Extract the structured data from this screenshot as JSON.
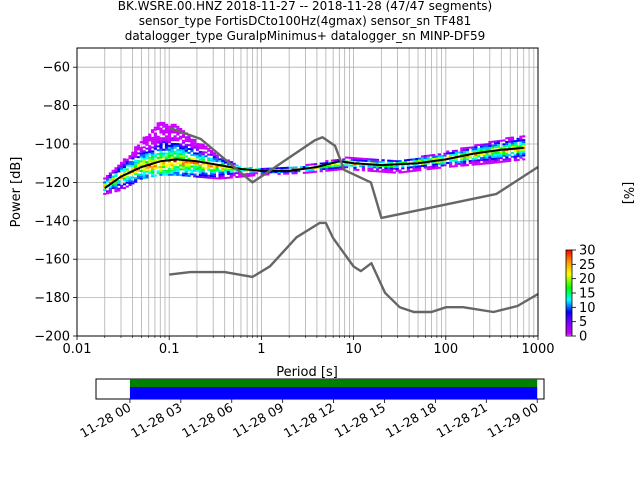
{
  "title": {
    "line1": "BK.WSRE.00.HNZ   2018-11-27 -- 2018-11-28  (47/47 segments)",
    "line2": "sensor_type FortisDCto100Hz(4gmax) sensor_sn TF481",
    "line3": "datalogger_type GuralpMinimus+ datalogger_sn MINP-DF59"
  },
  "chart_data": [
    {
      "type": "heatmap",
      "subtype": "probabilistic power spectral density",
      "xlabel": "Period [s]",
      "ylabel": "Power [dB]",
      "xscale": "log",
      "xlim": [
        0.01,
        1000
      ],
      "ylim": [
        -200,
        -50
      ],
      "x_ticks": [
        0.01,
        0.1,
        1,
        10,
        100,
        1000
      ],
      "x_tick_labels": [
        "0.01",
        "0.1",
        "1",
        "10",
        "100",
        "1000"
      ],
      "y_ticks": [
        -60,
        -80,
        -100,
        -120,
        -140,
        -160,
        -180,
        -200
      ],
      "y_tick_labels": [
        "−60",
        "−80",
        "−100",
        "−120",
        "−140",
        "−160",
        "−180",
        "−200"
      ],
      "grid": true,
      "colormap": "pqlx",
      "colorbar": {
        "label": "[%]",
        "range": [
          0,
          30
        ],
        "ticks": [
          0,
          5,
          10,
          15,
          20,
          25,
          30
        ],
        "tick_labels": [
          "0",
          "5",
          "10",
          "15",
          "20",
          "25",
          "30"
        ]
      },
      "series": [
        {
          "role": "mean",
          "color": "#000000",
          "x": [
            0.02,
            0.03,
            0.05,
            0.08,
            0.12,
            0.2,
            0.35,
            0.6,
            1,
            2,
            4,
            7,
            10,
            20,
            50,
            100,
            200,
            400,
            700
          ],
          "y": [
            -123,
            -117,
            -112,
            -109,
            -108,
            -109,
            -111,
            -113,
            -114,
            -114,
            -112,
            -109,
            -110,
            -111,
            -110,
            -108,
            -105,
            -103,
            -102
          ]
        },
        {
          "role": "noise-model-high",
          "color": "#666666",
          "x": [
            0.1,
            0.22,
            0.8,
            3.8,
            4.6,
            6.3,
            7.9,
            15.4,
            20,
            354.8,
            1000
          ],
          "y": [
            -91.5,
            -97.4,
            -120,
            -98,
            -96.5,
            -101,
            -113.5,
            -120,
            -138.5,
            -126,
            -112
          ]
        },
        {
          "role": "noise-model-low",
          "color": "#666666",
          "x": [
            0.1,
            0.17,
            0.4,
            0.8,
            1.24,
            2.4,
            4.3,
            5,
            6,
            10,
            12,
            15.6,
            21.9,
            31.6,
            45,
            70,
            101,
            154,
            328,
            600,
            1000
          ],
          "y": [
            -168,
            -166.7,
            -166.7,
            -169.2,
            -163.7,
            -148.6,
            -141.1,
            -141.1,
            -149,
            -163.8,
            -166.2,
            -162.1,
            -177.5,
            -185,
            -187.5,
            -187.5,
            -185,
            -185,
            -187.5,
            -184.4,
            -178.1
          ]
        }
      ],
      "density_columns": [
        {
          "x": 0.02,
          "ymin": -126,
          "ymax": -118,
          "peak": -122,
          "spread": "narrow"
        },
        {
          "x": 0.03,
          "ymin": -124,
          "ymax": -110,
          "peak": -117,
          "spread": "medium"
        },
        {
          "x": 0.05,
          "ymin": -118,
          "ymax": -98,
          "peak": -112,
          "spread": "wide"
        },
        {
          "x": 0.08,
          "ymin": -116,
          "ymax": -88,
          "peak": -110,
          "spread": "wide"
        },
        {
          "x": 0.12,
          "ymin": -116,
          "ymax": -90,
          "peak": -109,
          "spread": "wide"
        },
        {
          "x": 0.2,
          "ymin": -117,
          "ymax": -98,
          "peak": -110,
          "spread": "wide"
        },
        {
          "x": 0.35,
          "ymin": -118,
          "ymax": -106,
          "peak": -112,
          "spread": "medium"
        },
        {
          "x": 0.6,
          "ymin": -117,
          "ymax": -112,
          "peak": -113,
          "spread": "narrow"
        },
        {
          "x": 1,
          "ymin": -116,
          "ymax": -113,
          "peak": -114,
          "spread": "narrow"
        },
        {
          "x": 3,
          "ymin": -115,
          "ymax": -111,
          "peak": -113,
          "spread": "narrow"
        },
        {
          "x": 8,
          "ymin": -113,
          "ymax": -107,
          "peak": -110,
          "spread": "narrow"
        },
        {
          "x": 30,
          "ymin": -115,
          "ymax": -109,
          "peak": -111,
          "spread": "narrow"
        },
        {
          "x": 100,
          "ymin": -112,
          "ymax": -104,
          "peak": -108,
          "spread": "medium"
        },
        {
          "x": 300,
          "ymin": -110,
          "ymax": -99,
          "peak": -104,
          "spread": "medium"
        },
        {
          "x": 700,
          "ymin": -108,
          "ymax": -95,
          "peak": -102,
          "spread": "medium"
        }
      ]
    },
    {
      "type": "timeline",
      "description": "data coverage",
      "x_tick_labels": [
        "11-28 00",
        "11-28 03",
        "11-28 06",
        "11-28 09",
        "11-28 12",
        "11-28 15",
        "11-28 18",
        "11-28 21",
        "11-29 00"
      ],
      "coverage_hours": [
        0,
        24
      ],
      "range_hours": [
        -2,
        24.4
      ],
      "bars": [
        {
          "color": "#008000",
          "role": "data availability"
        },
        {
          "color": "#0000ff",
          "role": "PSD coverage"
        }
      ]
    }
  ]
}
